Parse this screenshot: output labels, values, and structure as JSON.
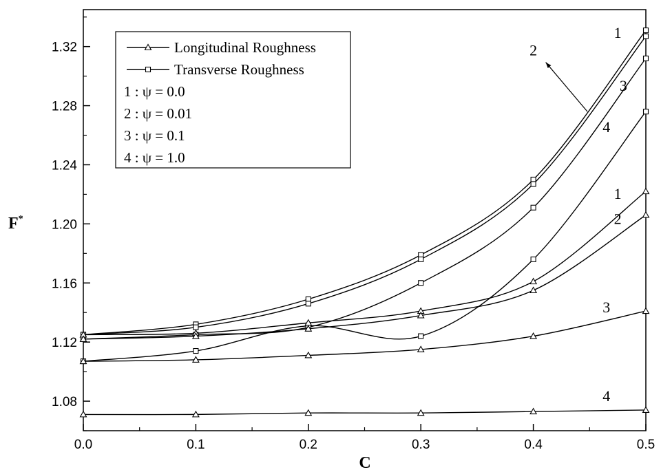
{
  "chart_data": {
    "type": "line",
    "xlabel": "C",
    "ylabel": "F",
    "ylabel_superscript": "*",
    "xlim": [
      0.0,
      0.5
    ],
    "ylim": [
      1.06,
      1.345
    ],
    "x_ticks": [
      "0.0",
      "0.1",
      "0.2",
      "0.3",
      "0.4",
      "0.5"
    ],
    "y_ticks": [
      "1.08",
      "1.12",
      "1.16",
      "1.20",
      "1.24",
      "1.28",
      "1.32"
    ],
    "grid": false,
    "legend_position": "top-left",
    "legend": [
      {
        "text": "Longitudinal Roughness",
        "marker": "triangle"
      },
      {
        "text": "Transverse Roughness",
        "marker": "square"
      },
      {
        "text": "1 : ψ = 0.0"
      },
      {
        "text": "2 : ψ = 0.01"
      },
      {
        "text": "3 : ψ = 0.1"
      },
      {
        "text": "4 : ψ = 1.0"
      }
    ],
    "x": [
      0.0,
      0.1,
      0.2,
      0.3,
      0.4,
      0.5
    ],
    "series": [
      {
        "group": "Transverse",
        "curve": "1",
        "marker": "square",
        "values": [
          1.125,
          1.132,
          1.149,
          1.179,
          1.23,
          1.331
        ]
      },
      {
        "group": "Transverse",
        "curve": "2",
        "marker": "square",
        "values": [
          1.125,
          1.13,
          1.146,
          1.176,
          1.227,
          1.327
        ]
      },
      {
        "group": "Transverse",
        "curve": "3",
        "marker": "square",
        "values": [
          1.122,
          1.125,
          1.13,
          1.16,
          1.211,
          1.312
        ]
      },
      {
        "group": "Transverse",
        "curve": "4",
        "marker": "square",
        "values": [
          1.107,
          1.114,
          1.131,
          1.124,
          1.176,
          1.276
        ]
      },
      {
        "group": "Longitudinal",
        "curve": "1",
        "marker": "triangle",
        "values": [
          1.125,
          1.126,
          1.133,
          1.141,
          1.161,
          1.222
        ]
      },
      {
        "group": "Longitudinal",
        "curve": "2",
        "marker": "triangle",
        "values": [
          1.122,
          1.124,
          1.129,
          1.138,
          1.155,
          1.206
        ]
      },
      {
        "group": "Longitudinal",
        "curve": "3",
        "marker": "triangle",
        "values": [
          1.107,
          1.108,
          1.111,
          1.115,
          1.124,
          1.141
        ]
      },
      {
        "group": "Longitudinal",
        "curve": "4",
        "marker": "triangle",
        "values": [
          1.071,
          1.071,
          1.072,
          1.072,
          1.073,
          1.074
        ]
      }
    ],
    "curve_labels": [
      {
        "text": "1",
        "near_x": 0.475,
        "near_y": 1.326
      },
      {
        "text": "2",
        "near_x": 0.4,
        "near_y": 1.314,
        "arrow": true
      },
      {
        "text": "3",
        "near_x": 0.48,
        "near_y": 1.29
      },
      {
        "text": "4",
        "near_x": 0.465,
        "near_y": 1.262
      },
      {
        "text": "1",
        "near_x": 0.475,
        "near_y": 1.217
      },
      {
        "text": "2",
        "near_x": 0.475,
        "near_y": 1.2
      },
      {
        "text": "3",
        "near_x": 0.465,
        "near_y": 1.14
      },
      {
        "text": "4",
        "near_x": 0.465,
        "near_y": 1.08
      }
    ]
  }
}
